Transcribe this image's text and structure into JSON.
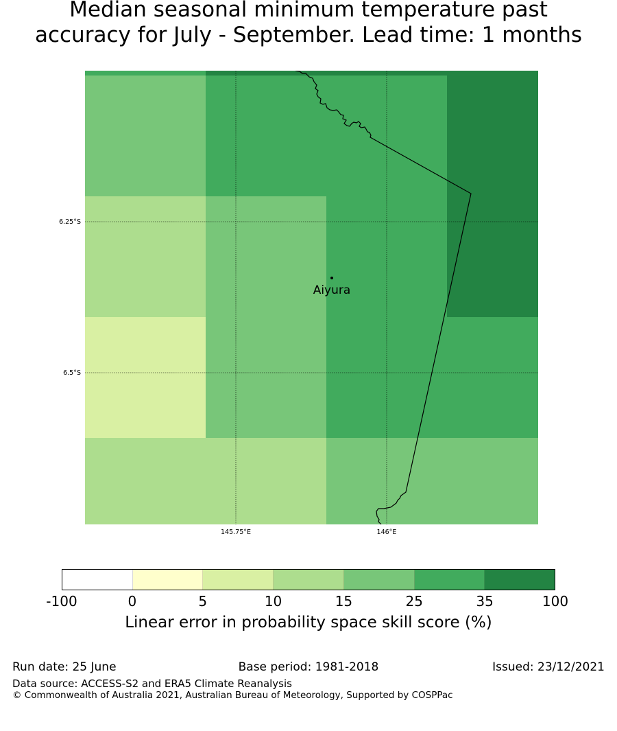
{
  "title": "Median seasonal minimum temperature past\naccuracy for July - September. Lead time: 1 months",
  "map": {
    "grid_cells": [
      {
        "col": 0,
        "row": 0,
        "category": 4
      },
      {
        "col": 1,
        "row": 0,
        "category": 5
      },
      {
        "col": 2,
        "row": 0,
        "category": 5
      },
      {
        "col": 3,
        "row": 0,
        "category": 6
      },
      {
        "col": 0,
        "row": 1,
        "category": 3
      },
      {
        "col": 1,
        "row": 1,
        "category": 4
      },
      {
        "col": 2,
        "row": 1,
        "category": 5
      },
      {
        "col": 3,
        "row": 1,
        "category": 6
      },
      {
        "col": 0,
        "row": 2,
        "category": 2
      },
      {
        "col": 1,
        "row": 2,
        "category": 4
      },
      {
        "col": 2,
        "row": 2,
        "category": 5
      },
      {
        "col": 3,
        "row": 2,
        "category": 5
      },
      {
        "col": 0,
        "row": 3,
        "category": 3
      },
      {
        "col": 1,
        "row": 3,
        "category": 3
      },
      {
        "col": 2,
        "row": 3,
        "category": 4
      },
      {
        "col": 3,
        "row": 3,
        "category": 4
      }
    ],
    "lat_labels": [
      "6.25°S",
      "6.5°S"
    ],
    "lon_labels": [
      "145.75°E",
      "146°E"
    ],
    "place": {
      "name": "Aiyura"
    }
  },
  "colorbar": {
    "colors": [
      "#ffffff",
      "#ffffcc",
      "#d9f0a3",
      "#addd8e",
      "#78c679",
      "#41ab5d",
      "#238443"
    ],
    "ticks": [
      "-100",
      "0",
      "5",
      "10",
      "15",
      "25",
      "35",
      "100"
    ],
    "label": "Linear error in probability space skill score (%)"
  },
  "footer": {
    "run_date": "Run date: 25 June",
    "base_period": "Base period: 1981-2018",
    "issued": "Issued: 23/12/2021",
    "data_source": "Data source: ACCESS-S2 and ERA5 Climate Reanalysis",
    "copyright": "© Commonwealth of Australia 2021, Australian Bureau of Meteorology, Supported by COSPPac"
  }
}
